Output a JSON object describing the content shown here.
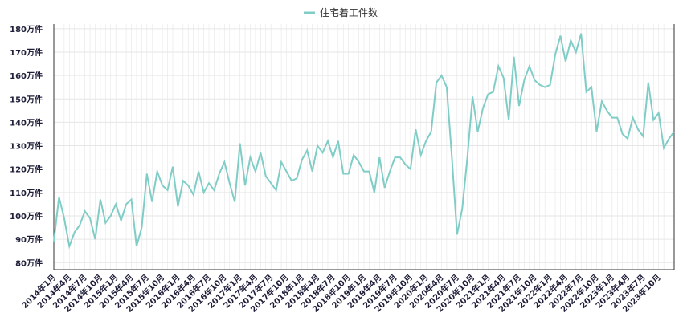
{
  "colors": {
    "series": "#7fcdc6",
    "grid": "#e6e6e6",
    "axis": "#333333"
  },
  "chart_data": {
    "type": "line",
    "title": "",
    "xlabel": "",
    "ylabel": "",
    "legend_position": "top-center",
    "grid": true,
    "y_unit_suffix": "万件",
    "ylim": [
      77,
      182
    ],
    "yticks": [
      80,
      90,
      100,
      110,
      120,
      130,
      140,
      150,
      160,
      170,
      180
    ],
    "ytick_labels": [
      "80万件",
      "90万件",
      "100万件",
      "110万件",
      "120万件",
      "130万件",
      "140万件",
      "150万件",
      "160万件",
      "170万件",
      "180万件"
    ],
    "x_labels_shown": [
      "2014年1月",
      "2014年4月",
      "2014年7月",
      "2014年10月",
      "2015年1月",
      "2015年4月",
      "2015年7月",
      "2015年10月",
      "2016年1月",
      "2016年4月",
      "2016年7月",
      "2016年10月",
      "2017年1月",
      "2017年4月",
      "2017年7月",
      "2017年10月",
      "2018年1月",
      "2018年4月",
      "2018年7月",
      "2018年10月",
      "2019年1月",
      "2019年4月",
      "2019年7月",
      "2019年10月",
      "2020年1月",
      "2020年4月",
      "2020年7月",
      "2020年10月",
      "2021年1月",
      "2021年4月",
      "2021年7月",
      "2021年10月",
      "2022年1月",
      "2022年4月",
      "2022年7月",
      "2022年10月",
      "2023年1月",
      "2023年4月",
      "2023年7月",
      "2023年10月"
    ],
    "start": "2014年1月",
    "series": [
      {
        "name": "住宅着工件数",
        "values": [
          89,
          108,
          99,
          87,
          93,
          96,
          102,
          99,
          90,
          107,
          97,
          100,
          105,
          98,
          105,
          107,
          87,
          95,
          118,
          106,
          119,
          113,
          111,
          121,
          104,
          115,
          113,
          109,
          119,
          110,
          114,
          111,
          118,
          123,
          114,
          106,
          131,
          113,
          125,
          119,
          127,
          117,
          114,
          111,
          123,
          119,
          115,
          116,
          124,
          128,
          119,
          130,
          127,
          132,
          125,
          132,
          118,
          118,
          126,
          123,
          119,
          119,
          110,
          125,
          112,
          119,
          125,
          125,
          122,
          120,
          137,
          126,
          132,
          136,
          157,
          160,
          155,
          125,
          92,
          103,
          125,
          151,
          136,
          146,
          152,
          153,
          164,
          159,
          141,
          168,
          147,
          158,
          164,
          158,
          156,
          155,
          156,
          169,
          177,
          166,
          175,
          170,
          178,
          153,
          155,
          136,
          149,
          145,
          142,
          142,
          135,
          133,
          142,
          137,
          134,
          157,
          141,
          144,
          129,
          133,
          136
        ]
      }
    ]
  }
}
